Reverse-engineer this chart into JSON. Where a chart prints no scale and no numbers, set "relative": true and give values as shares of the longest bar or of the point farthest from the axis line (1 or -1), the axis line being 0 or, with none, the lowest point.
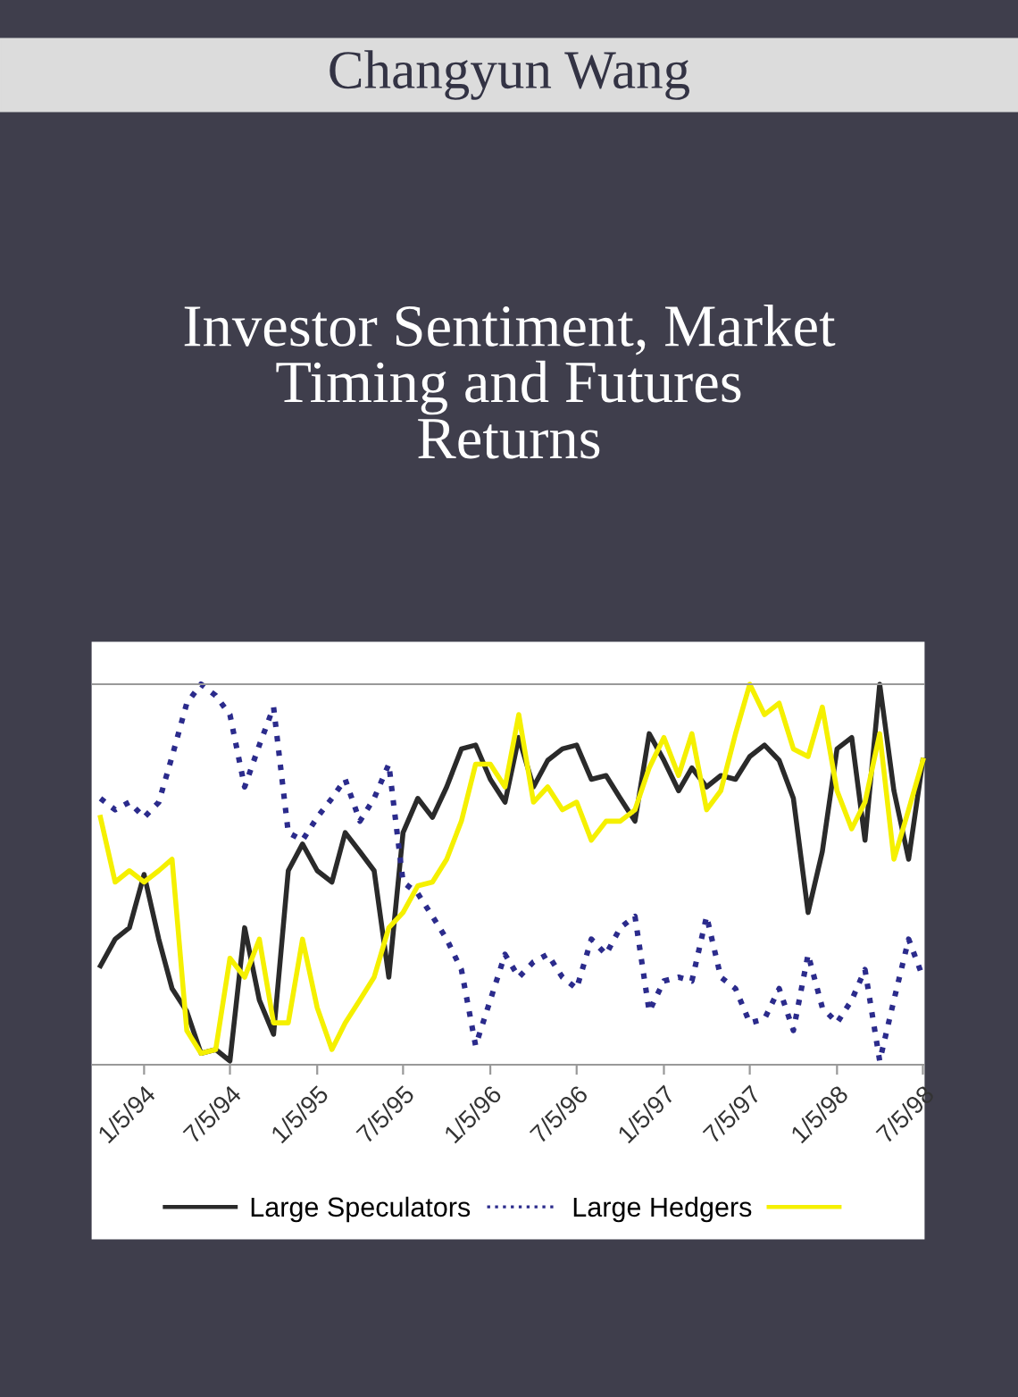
{
  "chart_data": {
    "type": "line",
    "title": "Investor Sentiment, Market\nTiming and Futures\nReturns",
    "subtitle": "Changyun Wang",
    "relative": true,
    "legend": "bottom",
    "x": [
      "1993-10-05",
      "1993-11-05",
      "1993-12-05",
      "1994-01-05",
      "1994-02-05",
      "1994-03-05",
      "1994-04-05",
      "1994-05-05",
      "1994-06-05",
      "1994-07-05",
      "1994-08-05",
      "1994-09-05",
      "1994-10-05",
      "1994-11-05",
      "1994-12-05",
      "1995-01-05",
      "1995-02-05",
      "1995-03-05",
      "1995-04-05",
      "1995-05-05",
      "1995-06-05",
      "1995-07-05",
      "1995-08-05",
      "1995-09-05",
      "1995-10-05",
      "1995-11-05",
      "1995-12-05",
      "1996-01-05",
      "1996-02-05",
      "1996-03-05",
      "1996-04-05",
      "1996-05-05",
      "1996-06-05",
      "1996-07-05",
      "1996-08-05",
      "1996-09-05",
      "1996-10-05",
      "1996-11-05",
      "1996-12-05",
      "1997-01-05",
      "1997-02-05",
      "1997-03-05",
      "1997-04-05",
      "1997-05-05",
      "1997-06-05",
      "1997-07-05",
      "1997-08-05",
      "1997-09-05",
      "1997-10-05",
      "1997-11-05",
      "1997-12-05",
      "1998-01-05",
      "1998-02-05",
      "1998-03-05",
      "1998-04-05",
      "1998-05-05",
      "1998-06-05",
      "1998-07-05"
    ],
    "xlim": [
      "1993-09-19",
      "1998-07-06"
    ],
    "xticks": [
      {
        "value": "1994-01-05",
        "label": "1/5/94"
      },
      {
        "value": "1994-07-05",
        "label": "7/5/94"
      },
      {
        "value": "1995-01-05",
        "label": "1/5/95"
      },
      {
        "value": "1995-07-05",
        "label": "7/5/95"
      },
      {
        "value": "1996-01-05",
        "label": "1/5/96"
      },
      {
        "value": "1996-07-05",
        "label": "7/5/96"
      },
      {
        "value": "1997-01-05",
        "label": "1/5/97"
      },
      {
        "value": "1997-07-05",
        "label": "7/5/97"
      },
      {
        "value": "1998-01-05",
        "label": "1/5/98"
      },
      {
        "value": "1998-07-05",
        "label": "7/5/98"
      }
    ],
    "series": [
      {
        "name": "Large Speculators",
        "color": "#2a2a2a",
        "line_style": "solid",
        "values": [
          0.26,
          0.33,
          0.36,
          0.5,
          0.33,
          0.2,
          0.14,
          0.03,
          0.04,
          0.01,
          0.36,
          0.17,
          0.08,
          0.51,
          0.58,
          0.51,
          0.48,
          0.61,
          0.56,
          0.51,
          0.23,
          0.61,
          0.7,
          0.65,
          0.73,
          0.83,
          0.84,
          0.75,
          0.69,
          0.86,
          0.73,
          0.8,
          0.83,
          0.84,
          0.75,
          0.76,
          0.7,
          0.64,
          0.87,
          0.8,
          0.72,
          0.78,
          0.73,
          0.76,
          0.75,
          0.81,
          0.84,
          0.8,
          0.7,
          0.4,
          0.56,
          0.83,
          0.86,
          0.59,
          1.0,
          0.72,
          0.54,
          0.8
        ]
      },
      {
        "name": "Large Hedgers",
        "color": "#2b2b8c",
        "line_style": "dotted",
        "values": [
          0.7,
          0.67,
          0.69,
          0.65,
          0.69,
          0.81,
          0.95,
          1.0,
          0.97,
          0.92,
          0.73,
          0.84,
          0.94,
          0.61,
          0.59,
          0.65,
          0.7,
          0.75,
          0.64,
          0.7,
          0.79,
          0.48,
          0.45,
          0.39,
          0.33,
          0.25,
          0.05,
          0.17,
          0.29,
          0.23,
          0.27,
          0.29,
          0.23,
          0.2,
          0.33,
          0.29,
          0.36,
          0.39,
          0.14,
          0.22,
          0.23,
          0.22,
          0.39,
          0.23,
          0.2,
          0.11,
          0.12,
          0.2,
          0.09,
          0.29,
          0.15,
          0.11,
          0.17,
          0.25,
          0.01,
          0.17,
          0.33,
          0.23
        ]
      },
      {
        "color": "#f5f000",
        "line_style": "solid",
        "values": [
          0.65,
          0.48,
          0.51,
          0.48,
          0.51,
          0.54,
          0.09,
          0.03,
          0.04,
          0.28,
          0.23,
          0.33,
          0.11,
          0.11,
          0.33,
          0.15,
          0.04,
          0.11,
          0.17,
          0.23,
          0.36,
          0.4,
          0.47,
          0.48,
          0.54,
          0.64,
          0.79,
          0.79,
          0.73,
          0.92,
          0.69,
          0.73,
          0.67,
          0.69,
          0.59,
          0.64,
          0.64,
          0.67,
          0.78,
          0.86,
          0.76,
          0.87,
          0.67,
          0.72,
          0.87,
          1.0,
          0.92,
          0.95,
          0.83,
          0.81,
          0.94,
          0.72,
          0.62,
          0.69,
          0.87,
          0.54,
          0.67,
          0.8
        ]
      }
    ]
  }
}
